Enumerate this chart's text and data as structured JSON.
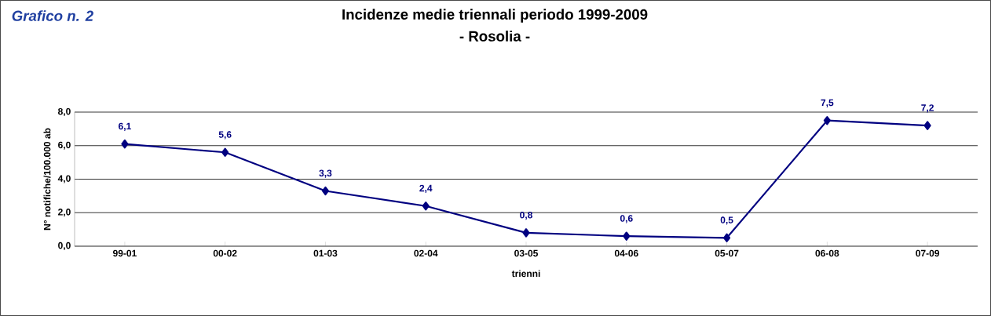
{
  "chart_data": {
    "type": "line",
    "title": "Incidenze medie triennali periodo 1999-2009",
    "subtitle": "- Rosolia -",
    "annotations": [
      "Grafico n. 2"
    ],
    "xlabel": "trienni",
    "ylabel": "N° notifiche/100.000 ab",
    "categories": [
      "99-01",
      "00-02",
      "01-03",
      "02-04",
      "03-05",
      "04-06",
      "05-07",
      "06-08",
      "07-09"
    ],
    "values": [
      6.1,
      5.6,
      3.3,
      2.4,
      0.8,
      0.6,
      0.5,
      7.5,
      7.2
    ],
    "value_labels": [
      "6,1",
      "5,6",
      "3,3",
      "2,4",
      "0,8",
      "0,6",
      "0,5",
      "7,5",
      "7,2"
    ],
    "color": "#000080",
    "marker": "diamond",
    "line_style": "solid",
    "grid": "y",
    "ylim": [
      0,
      8
    ],
    "yticks": [
      {
        "value": 0,
        "label": "0,0"
      },
      {
        "value": 2,
        "label": "2,0"
      },
      {
        "value": 4,
        "label": "4,0"
      },
      {
        "value": 6,
        "label": "6,0"
      },
      {
        "value": 8,
        "label": "8,0"
      }
    ]
  }
}
